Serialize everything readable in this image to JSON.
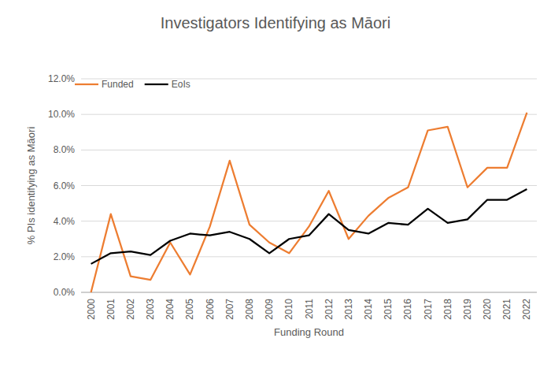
{
  "chart_data": {
    "type": "line",
    "title": "Investigators Identifying as Māori",
    "x_label": "Funding Round",
    "y_label": "% PIs identifying as Māori",
    "categories": [
      "2000",
      "2001",
      "2002",
      "2003",
      "2004",
      "2005",
      "2006",
      "2007",
      "2008",
      "2009",
      "2010",
      "2011",
      "2012",
      "2013",
      "2014",
      "2015",
      "2016",
      "2017",
      "2018",
      "2019",
      "2020",
      "2021",
      "2022"
    ],
    "series": [
      {
        "name": "Funded",
        "color": "#ED7D31",
        "line_style": "solid",
        "values": [
          0.0,
          4.4,
          0.9,
          0.7,
          2.8,
          1.0,
          3.7,
          7.4,
          3.8,
          2.8,
          2.2,
          3.7,
          5.7,
          3.0,
          4.3,
          5.3,
          5.9,
          9.1,
          9.3,
          5.9,
          7.0,
          7.0,
          10.1
        ]
      },
      {
        "name": "EoIs",
        "color": "#000000",
        "line_style": "solid",
        "values": [
          1.6,
          2.2,
          2.3,
          2.1,
          2.9,
          3.3,
          3.2,
          3.4,
          3.0,
          2.2,
          3.0,
          3.2,
          4.4,
          3.5,
          3.3,
          3.9,
          3.8,
          4.7,
          3.9,
          4.1,
          5.2,
          5.2,
          5.8
        ]
      }
    ],
    "ylim": [
      0,
      12
    ],
    "yticks": [
      {
        "value": 0,
        "label": "0.0%"
      },
      {
        "value": 2,
        "label": "2.0%"
      },
      {
        "value": 4,
        "label": "4.0%"
      },
      {
        "value": 6,
        "label": "6.0%"
      },
      {
        "value": 8,
        "label": "8.0%"
      },
      {
        "value": 10,
        "label": "10.0%"
      },
      {
        "value": 12,
        "label": "12.0%"
      }
    ],
    "grid": true,
    "legend": "top-left"
  }
}
